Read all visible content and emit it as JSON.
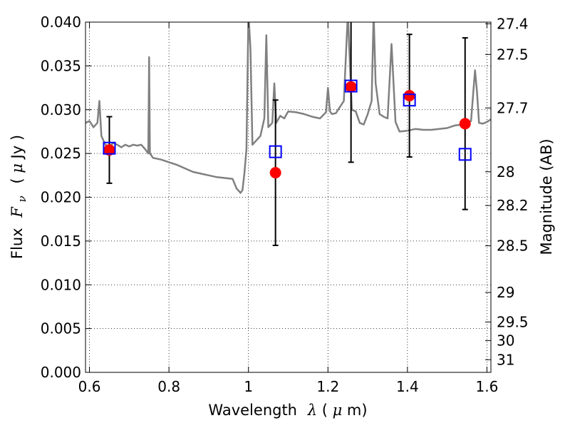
{
  "chart_data": {
    "type": "scatter",
    "title": "",
    "xlabel": "Wavelength",
    "xlabel_symbol": "λ",
    "xlabel_unit_open": " (",
    "xlabel_unit_mu": "μ",
    "xlabel_unit_rest": "m)",
    "ylabel": "Flux",
    "ylabel_symbol": "F",
    "ylabel_subscript": "ν",
    "ylabel_unit_open": "( ",
    "ylabel_unit_mu": "μ",
    "ylabel_unit_rest": "Jy )",
    "y2label": "Magnitude (AB)",
    "xlim": [
      0.59,
      1.61
    ],
    "ylim": [
      0.0,
      0.04
    ],
    "grid": true,
    "x_ticks": [
      0.6,
      0.8,
      1.0,
      1.2,
      1.4,
      1.6
    ],
    "x_tick_labels": [
      "0.6",
      "0.8",
      "1",
      "1.2",
      "1.4",
      "1.6"
    ],
    "y_ticks": [
      0.0,
      0.005,
      0.01,
      0.015,
      0.02,
      0.025,
      0.03,
      0.035,
      0.04
    ],
    "y_tick_labels": [
      "0.000",
      "0.005",
      "0.010",
      "0.015",
      "0.020",
      "0.025",
      "0.030",
      "0.035",
      "0.040"
    ],
    "y2_ticks": [
      27.4,
      27.5,
      27.7,
      28,
      28.2,
      28.5,
      29,
      29.5,
      30,
      31
    ],
    "y2_tick_labels": [
      "27.4",
      "27.5",
      "27.7",
      "28",
      "28.2",
      "28.5",
      "29",
      "29.5",
      "30",
      "31"
    ],
    "series": [
      {
        "kind": "line",
        "color": "#808080",
        "x": [
          0.59,
          0.6,
          0.61,
          0.62,
          0.625,
          0.63,
          0.64,
          0.65,
          0.66,
          0.67,
          0.68,
          0.69,
          0.7,
          0.71,
          0.72,
          0.73,
          0.74,
          0.748,
          0.75,
          0.752,
          0.76,
          0.78,
          0.8,
          0.82,
          0.84,
          0.86,
          0.88,
          0.9,
          0.92,
          0.94,
          0.96,
          0.97,
          0.98,
          0.985,
          0.99,
          0.995,
          1.0,
          1.005,
          1.01,
          1.02,
          1.03,
          1.04,
          1.045,
          1.05,
          1.06,
          1.065,
          1.07,
          1.08,
          1.09,
          1.1,
          1.12,
          1.14,
          1.16,
          1.18,
          1.195,
          1.2,
          1.205,
          1.21,
          1.22,
          1.24,
          1.25,
          1.26,
          1.27,
          1.28,
          1.29,
          1.3,
          1.31,
          1.315,
          1.32,
          1.33,
          1.34,
          1.35,
          1.36,
          1.37,
          1.38,
          1.4,
          1.42,
          1.44,
          1.46,
          1.48,
          1.5,
          1.52,
          1.54,
          1.55,
          1.56,
          1.57,
          1.575,
          1.58,
          1.59,
          1.6,
          1.61
        ],
        "y": [
          0.0285,
          0.0287,
          0.028,
          0.0285,
          0.031,
          0.027,
          0.026,
          0.0258,
          0.0262,
          0.026,
          0.0257,
          0.026,
          0.0258,
          0.026,
          0.0259,
          0.026,
          0.0255,
          0.025,
          0.036,
          0.025,
          0.0245,
          0.0243,
          0.024,
          0.0237,
          0.0233,
          0.0229,
          0.0227,
          0.0225,
          0.0223,
          0.0222,
          0.0221,
          0.021,
          0.0205,
          0.0208,
          0.0228,
          0.0255,
          0.041,
          0.037,
          0.026,
          0.0265,
          0.027,
          0.029,
          0.0385,
          0.028,
          0.0285,
          0.033,
          0.0285,
          0.0293,
          0.029,
          0.0298,
          0.0297,
          0.0295,
          0.0292,
          0.029,
          0.0297,
          0.0325,
          0.0298,
          0.0295,
          0.0296,
          0.031,
          0.041,
          0.03,
          0.0298,
          0.0285,
          0.0283,
          0.0295,
          0.031,
          0.041,
          0.033,
          0.0295,
          0.0292,
          0.029,
          0.0375,
          0.0286,
          0.0275,
          0.0276,
          0.0278,
          0.0277,
          0.0277,
          0.0278,
          0.0279,
          0.0282,
          0.0283,
          0.0285,
          0.0287,
          0.0345,
          0.032,
          0.0285,
          0.0284,
          0.0286,
          0.0289
        ]
      },
      {
        "kind": "points",
        "marker": "circle",
        "color": "#ff0000",
        "x": [
          0.65,
          1.068,
          1.258,
          1.405,
          1.545
        ],
        "y": [
          0.0254,
          0.0228,
          0.0326,
          0.0316,
          0.0284
        ],
        "yerr": [
          0.0038,
          0.0083,
          0.0086,
          0.007,
          0.0098
        ]
      },
      {
        "kind": "points",
        "marker": "square",
        "color": "#0000ff",
        "x": [
          0.65,
          1.068,
          1.258,
          1.405,
          1.545
        ],
        "y": [
          0.0256,
          0.0252,
          0.0327,
          0.0311,
          0.0249
        ]
      }
    ]
  }
}
